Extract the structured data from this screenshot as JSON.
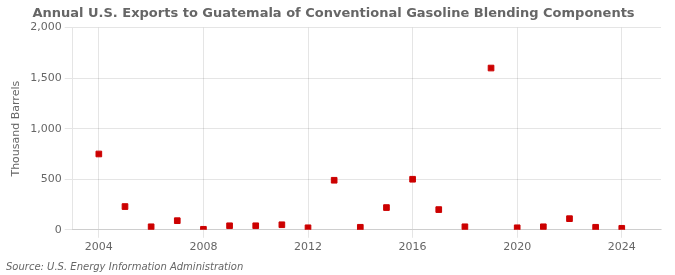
{
  "chart_data": {
    "type": "scatter",
    "title": "Annual U.S. Exports to Guatemala of Conventional Gasoline Blending Components",
    "ylabel": "Thousand Barrels",
    "source": "Source: U.S. Energy Information Administration",
    "x": [
      2004,
      2005,
      2006,
      2007,
      2008,
      2009,
      2010,
      2011,
      2012,
      2013,
      2014,
      2015,
      2016,
      2017,
      2018,
      2019,
      2020,
      2021,
      2022,
      2023,
      2024
    ],
    "values": [
      750,
      230,
      30,
      90,
      5,
      40,
      40,
      50,
      20,
      490,
      25,
      220,
      500,
      200,
      30,
      1600,
      20,
      30,
      110,
      25,
      15
    ],
    "color": "#cc0000",
    "marker": "square",
    "xlim": [
      2003.0,
      2025.5
    ],
    "ylim": [
      0,
      2000
    ],
    "xticks": [
      2004,
      2008,
      2012,
      2016,
      2020,
      2024
    ],
    "yticks": [
      0,
      500,
      {
        "value": 1000,
        "label": "1,000"
      },
      {
        "value": 1500,
        "label": "1,500"
      },
      {
        "value": 2000,
        "label": "2,000"
      }
    ],
    "grid": true
  }
}
